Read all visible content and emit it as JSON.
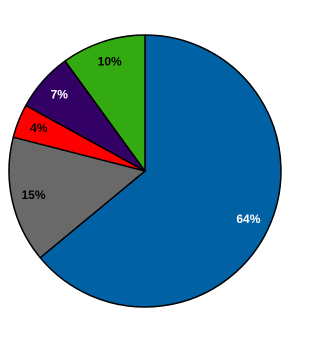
{
  "chart_data": {
    "type": "pie",
    "categories": [
      null,
      null,
      null,
      null,
      null
    ],
    "values": [
      64,
      15,
      4,
      7,
      10
    ],
    "value_labels": [
      "64%",
      "15%",
      "4%",
      "7%",
      "10%"
    ],
    "colors": [
      "#0061a4",
      "#696969",
      "#ff0000",
      "#330066",
      "#33aa11"
    ],
    "label_colors": [
      "#ffffff",
      "#000000",
      "#000000",
      "#ffffff",
      "#000000"
    ],
    "start_angle": 90,
    "direction": "clockwise"
  }
}
